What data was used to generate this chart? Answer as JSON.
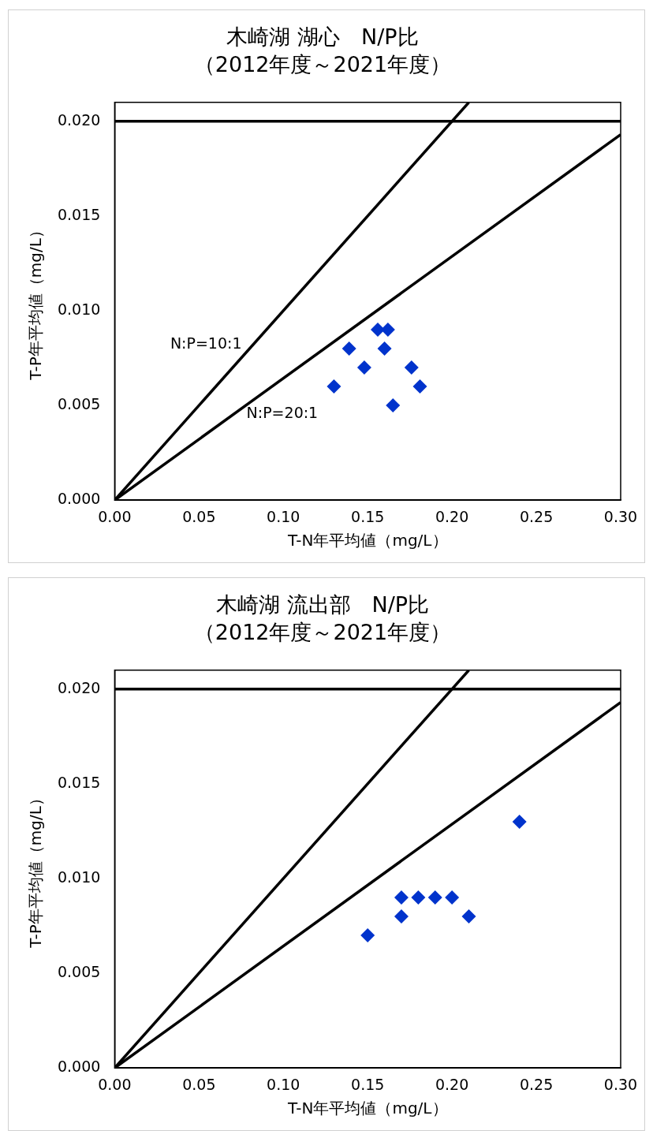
{
  "chart_data": [
    {
      "type": "scatter",
      "title": "木崎湖 湖心　N/P比",
      "subtitle": "（2012年度～2021年度）",
      "xlabel": "T-N年平均値（mg/L）",
      "ylabel": "T-P年平均値（mg/L）",
      "xlim": [
        0,
        0.3
      ],
      "ylim": [
        0,
        0.021
      ],
      "xticks": [
        {
          "value": 0,
          "label": "0.00"
        },
        {
          "value": 0.05,
          "label": "0.05"
        },
        {
          "value": 0.1,
          "label": "0.10"
        },
        {
          "value": 0.15,
          "label": "0.15"
        },
        {
          "value": 0.2,
          "label": "0.20"
        },
        {
          "value": 0.25,
          "label": "0.25"
        },
        {
          "value": 0.3,
          "label": "0.30"
        }
      ],
      "yticks": [
        {
          "value": 0,
          "label": "0.000"
        },
        {
          "value": 0.005,
          "label": "0.005"
        },
        {
          "value": 0.01,
          "label": "0.010"
        },
        {
          "value": 0.015,
          "label": "0.015"
        },
        {
          "value": 0.02,
          "label": "0.020"
        }
      ],
      "grid": false,
      "legend": false,
      "series": [
        {
          "type": "scatter",
          "marker": "diamond",
          "color": "#0033cc",
          "x": [
            0.156,
            0.162,
            0.139,
            0.16,
            0.148,
            0.176,
            0.13,
            0.181,
            0.165
          ],
          "values": [
            0.009,
            0.009,
            0.008,
            0.008,
            0.007,
            0.007,
            0.006,
            0.006,
            0.005
          ]
        },
        {
          "type": "line",
          "marker": "none",
          "color": "#000000",
          "name": "N:P=10:1",
          "x": [
            0,
            0.21
          ],
          "values": [
            0,
            0.021
          ]
        },
        {
          "type": "line",
          "marker": "none",
          "color": "#000000",
          "name": "N:P=20:1",
          "x": [
            0,
            0.3
          ],
          "values": [
            0,
            0.0193
          ]
        }
      ],
      "ref_lines": [
        {
          "axis": "y",
          "value": 0.02,
          "color": "#000000"
        }
      ]
    },
    {
      "type": "scatter",
      "title": "木崎湖 流出部　N/P比",
      "subtitle": "（2012年度～2021年度）",
      "xlabel": "T-N年平均値（mg/L）",
      "ylabel": "T-P年平均値（mg/L）",
      "xlim": [
        0,
        0.3
      ],
      "ylim": [
        0,
        0.021
      ],
      "xticks": [
        {
          "value": 0,
          "label": "0.00"
        },
        {
          "value": 0.05,
          "label": "0.05"
        },
        {
          "value": 0.1,
          "label": "0.10"
        },
        {
          "value": 0.15,
          "label": "0.15"
        },
        {
          "value": 0.2,
          "label": "0.20"
        },
        {
          "value": 0.25,
          "label": "0.25"
        },
        {
          "value": 0.3,
          "label": "0.30"
        }
      ],
      "yticks": [
        {
          "value": 0,
          "label": "0.000"
        },
        {
          "value": 0.005,
          "label": "0.005"
        },
        {
          "value": 0.01,
          "label": "0.010"
        },
        {
          "value": 0.015,
          "label": "0.015"
        },
        {
          "value": 0.02,
          "label": "0.020"
        }
      ],
      "grid": false,
      "legend": false,
      "series": [
        {
          "type": "scatter",
          "marker": "diamond",
          "color": "#0033cc",
          "x": [
            0.24,
            0.17,
            0.18,
            0.19,
            0.2,
            0.17,
            0.21,
            0.15
          ],
          "values": [
            0.013,
            0.009,
            0.009,
            0.009,
            0.009,
            0.008,
            0.008,
            0.007
          ]
        },
        {
          "type": "line",
          "marker": "none",
          "color": "#000000",
          "x": [
            0,
            0.21
          ],
          "values": [
            0,
            0.021
          ]
        },
        {
          "type": "line",
          "marker": "none",
          "color": "#000000",
          "x": [
            0,
            0.3
          ],
          "values": [
            0,
            0.0193
          ]
        }
      ],
      "ref_lines": [
        {
          "axis": "y",
          "value": 0.02,
          "color": "#000000"
        }
      ]
    }
  ]
}
